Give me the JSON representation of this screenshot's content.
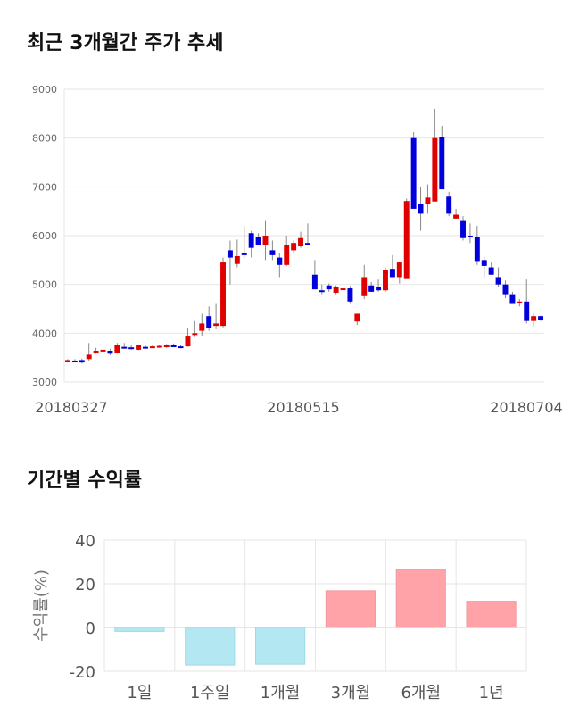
{
  "titles": {
    "price_trend": "최근 3개월간 주가 추세",
    "period_returns": "기간별 수익률"
  },
  "colors": {
    "up": "#e00000",
    "down": "#0000dd",
    "wick": "#888888",
    "positive_bar": "#ffa3a8",
    "negative_bar": "#b3e8f2",
    "grid": "#e6e6e6"
  },
  "chart_data": [
    {
      "type": "candlestick",
      "title": "최근 3개월간 주가 추세",
      "ylim": [
        3000,
        9000
      ],
      "yticks": [
        3000,
        4000,
        5000,
        6000,
        7000,
        8000,
        9000
      ],
      "xticklabels": [
        "20180327",
        "20180515",
        "20180704"
      ],
      "grid": true,
      "ohlc": [
        [
          3430,
          3470,
          3400,
          3450
        ],
        [
          3440,
          3470,
          3400,
          3420
        ],
        [
          3450,
          3480,
          3380,
          3400
        ],
        [
          3470,
          3800,
          3440,
          3560
        ],
        [
          3600,
          3700,
          3580,
          3640
        ],
        [
          3630,
          3700,
          3590,
          3660
        ],
        [
          3640,
          3680,
          3550,
          3580
        ],
        [
          3600,
          3800,
          3580,
          3760
        ],
        [
          3720,
          3800,
          3680,
          3700
        ],
        [
          3710,
          3760,
          3660,
          3700
        ],
        [
          3660,
          3770,
          3650,
          3760
        ],
        [
          3720,
          3750,
          3700,
          3710
        ],
        [
          3710,
          3760,
          3700,
          3730
        ],
        [
          3720,
          3760,
          3700,
          3740
        ],
        [
          3730,
          3780,
          3700,
          3750
        ],
        [
          3750,
          3790,
          3720,
          3740
        ],
        [
          3730,
          3760,
          3690,
          3720
        ],
        [
          3730,
          4110,
          3720,
          3950
        ],
        [
          3970,
          4250,
          3940,
          4000
        ],
        [
          4050,
          4400,
          3950,
          4200
        ],
        [
          4350,
          4550,
          4050,
          4100
        ],
        [
          4150,
          4600,
          4080,
          4200
        ],
        [
          4150,
          5550,
          4120,
          5450
        ],
        [
          5700,
          5900,
          5000,
          5550
        ],
        [
          5420,
          5920,
          5350,
          5580
        ],
        [
          5650,
          6200,
          5550,
          5600
        ],
        [
          6050,
          6100,
          5550,
          5750
        ],
        [
          5970,
          6050,
          5800,
          5800
        ],
        [
          5800,
          6300,
          5500,
          6000
        ],
        [
          5700,
          5900,
          5500,
          5600
        ],
        [
          5550,
          5650,
          5150,
          5400
        ],
        [
          5400,
          6000,
          5380,
          5800
        ],
        [
          5700,
          5900,
          5650,
          5850
        ],
        [
          5780,
          6080,
          5750,
          5950
        ],
        [
          5850,
          6250,
          5800,
          5830
        ],
        [
          5200,
          5500,
          4900,
          4900
        ],
        [
          4880,
          5000,
          4800,
          4870
        ],
        [
          4980,
          5020,
          4850,
          4900
        ],
        [
          4830,
          4980,
          4800,
          4950
        ],
        [
          4910,
          4950,
          4880,
          4920
        ],
        [
          4920,
          4970,
          4600,
          4650
        ],
        [
          4240,
          4400,
          4170,
          4400
        ],
        [
          4760,
          5400,
          4700,
          5150
        ],
        [
          4980,
          5050,
          4850,
          4850
        ],
        [
          4950,
          5100,
          4850,
          4880
        ],
        [
          4880,
          5350,
          4850,
          5300
        ],
        [
          5320,
          5600,
          5150,
          5150
        ],
        [
          5150,
          5450,
          5020,
          5450
        ],
        [
          5110,
          6760,
          5110,
          6710
        ],
        [
          8000,
          8120,
          6550,
          6550
        ],
        [
          6650,
          7000,
          6100,
          6450
        ],
        [
          6650,
          7050,
          6450,
          6780
        ],
        [
          6700,
          8600,
          6700,
          8000
        ],
        [
          8020,
          8250,
          6950,
          6950
        ],
        [
          6800,
          6900,
          6400,
          6450
        ],
        [
          6350,
          6550,
          6350,
          6430
        ],
        [
          6300,
          6400,
          5900,
          5950
        ],
        [
          6000,
          6250,
          5850,
          5970
        ],
        [
          5970,
          6200,
          5400,
          5480
        ],
        [
          5500,
          5570,
          5130,
          5380
        ],
        [
          5350,
          5450,
          5200,
          5200
        ],
        [
          5150,
          5350,
          4950,
          5000
        ],
        [
          5000,
          5080,
          4720,
          4800
        ],
        [
          4800,
          4850,
          4600,
          4600
        ],
        [
          4650,
          4700,
          4550,
          4650
        ],
        [
          4650,
          5100,
          4200,
          4250
        ],
        [
          4250,
          4400,
          4150,
          4350
        ],
        [
          4350,
          4360,
          4250,
          4270
        ]
      ]
    },
    {
      "type": "bar",
      "title": "기간별 수익률",
      "categories": [
        "1일",
        "1주일",
        "1개월",
        "3개월",
        "6개월",
        "1년"
      ],
      "values": [
        -1.8,
        -17.2,
        -16.8,
        16.8,
        26.5,
        12.0
      ],
      "ylabel": "수익률(%)",
      "ylim": [
        -20,
        40
      ],
      "yticks": [
        -20,
        0,
        20,
        40
      ],
      "grid": true
    }
  ]
}
